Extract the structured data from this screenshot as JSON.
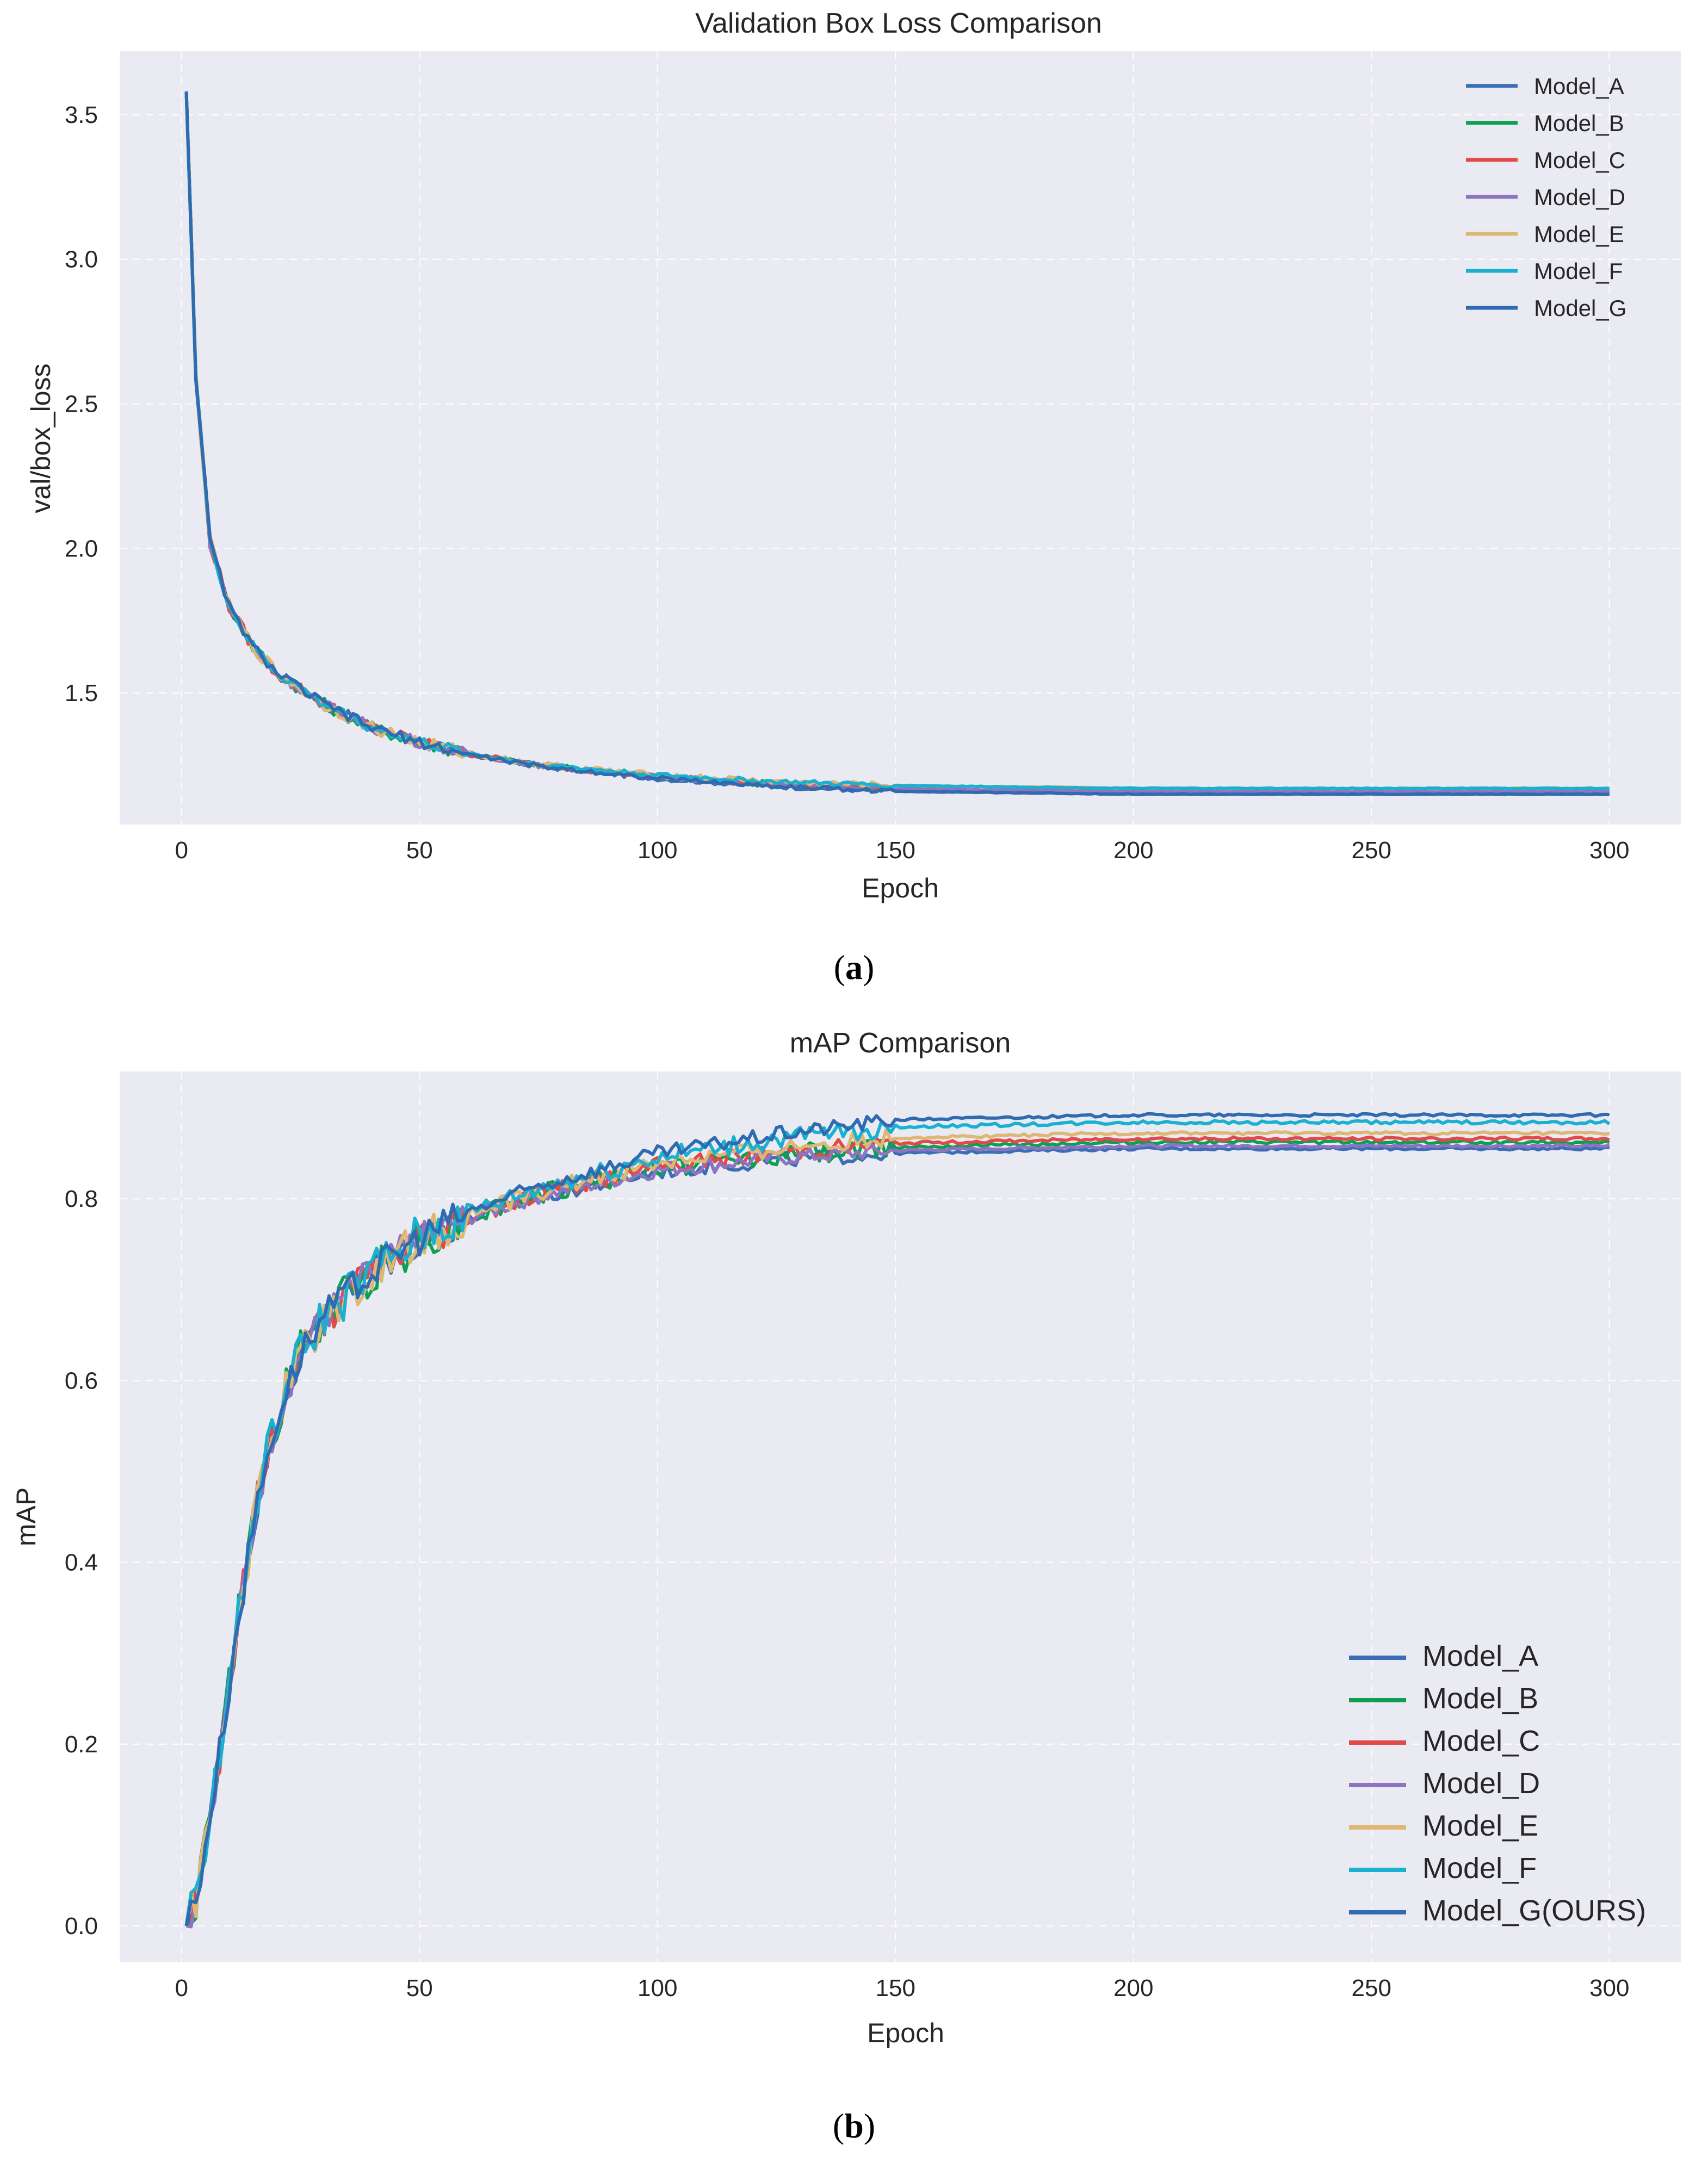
{
  "colors": {
    "background": "#ffffff",
    "plot_bg": "#eaeaf2",
    "Model_A": "#3a6fb5",
    "Model_B": "#0da052",
    "Model_C": "#e24a4a",
    "Model_D": "#8e74c0",
    "Model_E": "#ddb774",
    "Model_F": "#1ab0d0",
    "Model_G": "#2e6bb0"
  },
  "chart_data": [
    {
      "id": "a",
      "type": "line",
      "caption": "a",
      "title": "Validation Box Loss Comparison",
      "xlabel": "Epoch",
      "ylabel": "val/box_loss",
      "xlim": [
        -13,
        315
      ],
      "ylim": [
        1.045,
        3.72
      ],
      "xticks": [
        0,
        50,
        100,
        150,
        200,
        250,
        300
      ],
      "yticks": [
        1.5,
        2.0,
        2.5,
        3.0,
        3.5
      ],
      "ytick_labels": [
        "1.5",
        "2.0",
        "2.5",
        "3.0",
        "3.5"
      ],
      "grid": true,
      "legend_position": "top-right",
      "series": [
        {
          "name": "Model_A",
          "final": 1.15,
          "noise": 0.012
        },
        {
          "name": "Model_B",
          "final": 1.16,
          "noise": 0.014
        },
        {
          "name": "Model_C",
          "final": 1.16,
          "noise": 0.013
        },
        {
          "name": "Model_D",
          "final": 1.16,
          "noise": 0.012
        },
        {
          "name": "Model_E",
          "final": 1.17,
          "noise": 0.014
        },
        {
          "name": "Model_F",
          "final": 1.17,
          "noise": 0.012
        },
        {
          "name": "Model_G",
          "final": 1.15,
          "noise": 0.011
        }
      ],
      "anchors": {
        "x": [
          1,
          3,
          6,
          10,
          15,
          20,
          30,
          40,
          50,
          60,
          75,
          100,
          125,
          150,
          200,
          250,
          300
        ],
        "y": [
          3.58,
          2.6,
          2.02,
          1.8,
          1.66,
          1.57,
          1.46,
          1.38,
          1.33,
          1.29,
          1.25,
          1.21,
          1.185,
          1.17,
          1.16,
          1.16,
          1.16
        ]
      }
    },
    {
      "id": "b",
      "type": "line",
      "caption": "b",
      "title": "mAP Comparison",
      "xlabel": "Epoch",
      "ylabel": "mAP",
      "xlim": [
        -13,
        315
      ],
      "ylim": [
        -0.04,
        0.94
      ],
      "xticks": [
        0,
        50,
        100,
        150,
        200,
        250,
        300
      ],
      "yticks": [
        0.0,
        0.2,
        0.4,
        0.6,
        0.8
      ],
      "ytick_labels": [
        "0.0",
        "0.2",
        "0.4",
        "0.6",
        "0.8"
      ],
      "grid": true,
      "legend_position": "lower-right",
      "series": [
        {
          "name": "Model_A",
          "final": 0.855,
          "noise": 0.012
        },
        {
          "name": "Model_B",
          "final": 0.862,
          "noise": 0.016
        },
        {
          "name": "Model_C",
          "final": 0.866,
          "noise": 0.014
        },
        {
          "name": "Model_D",
          "final": 0.858,
          "noise": 0.012
        },
        {
          "name": "Model_E",
          "final": 0.872,
          "noise": 0.014
        },
        {
          "name": "Model_F",
          "final": 0.884,
          "noise": 0.016
        },
        {
          "name": "Model_G(OURS)",
          "final": 0.892,
          "noise": 0.012
        }
      ],
      "anchors": {
        "x": [
          1,
          3,
          5,
          8,
          12,
          16,
          20,
          25,
          30,
          40,
          50,
          60,
          75,
          100,
          125,
          150,
          200,
          250,
          300
        ],
        "y": [
          0.0,
          0.03,
          0.09,
          0.19,
          0.34,
          0.47,
          0.56,
          0.63,
          0.67,
          0.72,
          0.755,
          0.78,
          0.805,
          0.835,
          0.85,
          0.86,
          0.865,
          0.865,
          0.865
        ]
      }
    }
  ]
}
